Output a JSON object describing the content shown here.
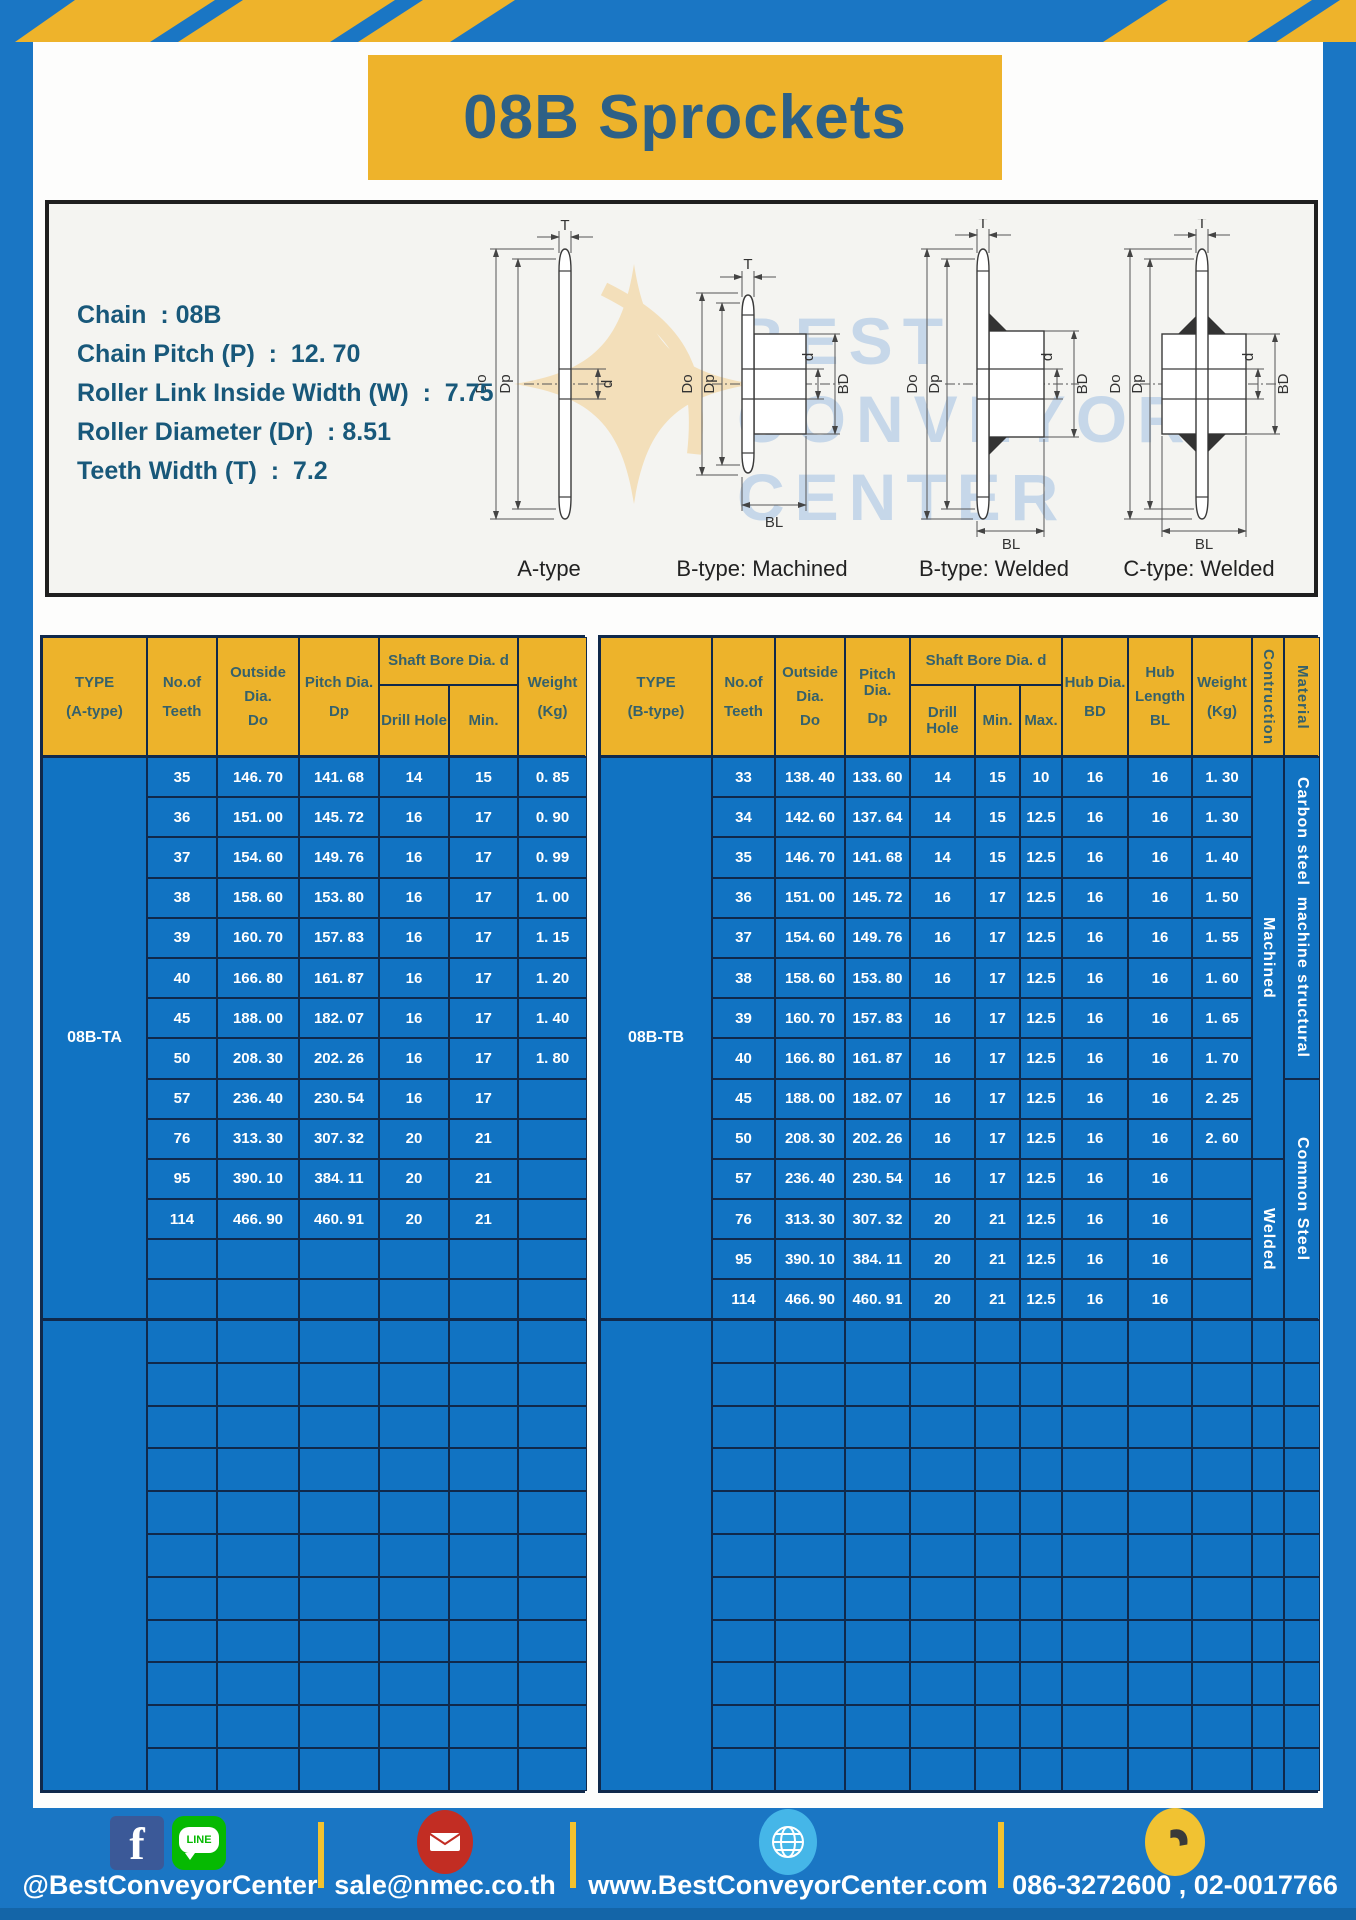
{
  "title": "08B Sprockets",
  "specs": [
    "Chain  : 08B",
    "Chain Pitch (P)  :  12. 70",
    "Roller Link Inside Width (W)  :  7.75",
    "Roller Diameter (Dr)  : 8.51",
    "Teeth Width (T)  :  7.2"
  ],
  "diagram": {
    "captions": [
      "A-type",
      "B-type: Machined",
      "B-type: Welded",
      "C-type: Welded"
    ],
    "labels": {
      "T": "T",
      "Do": "Do",
      "Dp": "Dp",
      "d": "d",
      "BD": "BD",
      "BL": "BL"
    },
    "watermark": [
      "BEST",
      "CONVEYOR",
      "CENTER"
    ]
  },
  "left_table": {
    "header": {
      "type": [
        "TYPE",
        "(A-type)"
      ],
      "teeth": [
        "No.of",
        "Teeth"
      ],
      "outside": [
        "Outside",
        "Dia.",
        "Do"
      ],
      "pitch": [
        "Pitch Dia.",
        "Dp"
      ],
      "shaft_bore": "Shaft Bore Dia. d",
      "drill": "Drill Hole",
      "min": "Min.",
      "weight": [
        "Weight",
        "(Kg)"
      ]
    },
    "block1": {
      "cols": 7,
      "span_cols": [
        {
          "col": 0,
          "groups": [
            {
              "name": "type-label-08b-ta",
              "label": "08B-TA",
              "span": 14
            }
          ]
        }
      ],
      "rows": [
        [
          "35",
          "146. 70",
          "141. 68",
          "14",
          "15",
          "0. 85"
        ],
        [
          "36",
          "151. 00",
          "145. 72",
          "16",
          "17",
          "0. 90"
        ],
        [
          "37",
          "154. 60",
          "149. 76",
          "16",
          "17",
          "0. 99"
        ],
        [
          "38",
          "158. 60",
          "153. 80",
          "16",
          "17",
          "1. 00"
        ],
        [
          "39",
          "160. 70",
          "157. 83",
          "16",
          "17",
          "1. 15"
        ],
        [
          "40",
          "166. 80",
          "161. 87",
          "16",
          "17",
          "1. 20"
        ],
        [
          "45",
          "188. 00",
          "182. 07",
          "16",
          "17",
          "1. 40"
        ],
        [
          "50",
          "208. 30",
          "202. 26",
          "16",
          "17",
          "1. 80"
        ],
        [
          "57",
          "236. 40",
          "230. 54",
          "16",
          "17",
          ""
        ],
        [
          "76",
          "313. 30",
          "307. 32",
          "20",
          "21",
          ""
        ],
        [
          "95",
          "390. 10",
          "384. 11",
          "20",
          "21",
          ""
        ],
        [
          "114",
          "466. 90",
          "460. 91",
          "20",
          "21",
          ""
        ],
        [
          "",
          "",
          "",
          "",
          "",
          ""
        ],
        [
          "",
          "",
          "",
          "",
          "",
          ""
        ]
      ]
    },
    "block2": {
      "cols": 7,
      "empty_row_count": 11,
      "span_cols": [
        {
          "col": 0,
          "groups": [
            {
              "name": "type-label-empty",
              "label": "",
              "span": 11
            }
          ]
        }
      ]
    }
  },
  "right_table": {
    "header": {
      "type": [
        "TYPE",
        "(B-type)"
      ],
      "teeth": [
        "No.of",
        "Teeth"
      ],
      "outside": [
        "Outside",
        "Dia.",
        "Do"
      ],
      "pitch": [
        "Pitch Dia.",
        "Dp"
      ],
      "shaft_bore": "Shaft Bore Dia. d",
      "drill": "Drill Hole",
      "min": "Min.",
      "max": "Max.",
      "hub_dia": [
        "Hub Dia.",
        "BD"
      ],
      "hub_len": [
        "Hub",
        "Length",
        "BL"
      ],
      "weight": [
        "Weight",
        "(Kg)"
      ],
      "construction": "Contruction",
      "material": "Material"
    },
    "block1": {
      "cols": 12,
      "span_cols": [
        {
          "col": 0,
          "groups": [
            {
              "name": "type-label-08b-tb",
              "label": "08B-TB",
              "span": 14
            }
          ]
        },
        {
          "col": 10,
          "groups": [
            {
              "name": "construction-machined",
              "label": "Machined",
              "span": 10,
              "vertical": true
            },
            {
              "name": "construction-welded",
              "label": "Welded",
              "span": 4,
              "vertical": true
            }
          ]
        },
        {
          "col": 11,
          "groups": [
            {
              "name": "material-carbon-steel",
              "label": "Carbon steel  machine structural",
              "span": 8,
              "vertical": true
            },
            {
              "name": "material-common-steel",
              "label": "Common Steel",
              "span": 6,
              "vertical": true
            }
          ]
        }
      ],
      "rows": [
        [
          "33",
          "138. 40",
          "133. 60",
          "14",
          "15",
          "10",
          "16",
          "16",
          "1. 30"
        ],
        [
          "34",
          "142. 60",
          "137. 64",
          "14",
          "15",
          "12.5",
          "16",
          "16",
          "1. 30"
        ],
        [
          "35",
          "146. 70",
          "141. 68",
          "14",
          "15",
          "12.5",
          "16",
          "16",
          "1. 40"
        ],
        [
          "36",
          "151. 00",
          "145. 72",
          "16",
          "17",
          "12.5",
          "16",
          "16",
          "1. 50"
        ],
        [
          "37",
          "154. 60",
          "149. 76",
          "16",
          "17",
          "12.5",
          "16",
          "16",
          "1. 55"
        ],
        [
          "38",
          "158. 60",
          "153. 80",
          "16",
          "17",
          "12.5",
          "16",
          "16",
          "1. 60"
        ],
        [
          "39",
          "160. 70",
          "157. 83",
          "16",
          "17",
          "12.5",
          "16",
          "16",
          "1. 65"
        ],
        [
          "40",
          "166. 80",
          "161. 87",
          "16",
          "17",
          "12.5",
          "16",
          "16",
          "1. 70"
        ],
        [
          "45",
          "188. 00",
          "182. 07",
          "16",
          "17",
          "12.5",
          "16",
          "16",
          "2. 25"
        ],
        [
          "50",
          "208. 30",
          "202. 26",
          "16",
          "17",
          "12.5",
          "16",
          "16",
          "2. 60"
        ],
        [
          "57",
          "236. 40",
          "230. 54",
          "16",
          "17",
          "12.5",
          "16",
          "16",
          ""
        ],
        [
          "76",
          "313. 30",
          "307. 32",
          "20",
          "21",
          "12.5",
          "16",
          "16",
          ""
        ],
        [
          "95",
          "390. 10",
          "384. 11",
          "20",
          "21",
          "12.5",
          "16",
          "16",
          ""
        ],
        [
          "114",
          "466. 90",
          "460. 91",
          "20",
          "21",
          "12.5",
          "16",
          "16",
          ""
        ]
      ]
    },
    "block2": {
      "cols": 12,
      "empty_row_count": 11,
      "span_cols": [
        {
          "col": 0,
          "groups": [
            {
              "name": "type-label-empty",
              "label": "",
              "span": 11
            }
          ]
        }
      ]
    }
  },
  "footer": {
    "social_label": "@BestConveyorCenter",
    "email": "sale@nmec.co.th",
    "website": "www.BestConveyorCenter.com",
    "phone": "086-3272600 , 02-0017766",
    "icons": {
      "facebook": "f",
      "line": "LINE"
    }
  }
}
